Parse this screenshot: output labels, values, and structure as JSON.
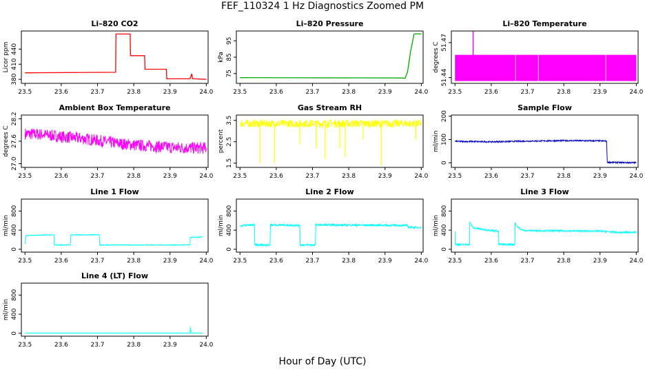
{
  "figure": {
    "title": "FEF_110324  1 Hz Diagnostics Zoomed PM",
    "xlabel": "Hour of Day (UTC)"
  },
  "chart_data": [
    {
      "type": "line",
      "title": "Li–820 CO2",
      "ylabel": "Licor ppm",
      "color": "#ff0000",
      "xlim": [
        23.49,
        24.005
      ],
      "ylim": [
        372,
        476
      ],
      "xticks": [
        23.5,
        23.6,
        23.7,
        23.8,
        23.9,
        24.0
      ],
      "xtick_labels": [
        "23.5",
        "23.6",
        "23.7",
        "23.8",
        "23.9",
        "24.0"
      ],
      "yticks": [
        380,
        410,
        440
      ],
      "ytick_labels": [
        "380",
        "410",
        "440"
      ],
      "series": [
        {
          "x": [
            23.5,
            23.75,
            23.751,
            23.79,
            23.791,
            23.83,
            23.831,
            23.89,
            23.891,
            23.955,
            23.96,
            23.962,
            23.965,
            24.0
          ],
          "y": [
            393,
            394,
            470,
            470,
            427,
            427,
            400,
            400,
            381,
            381,
            391,
            381,
            381,
            380
          ]
        }
      ]
    },
    {
      "type": "line",
      "title": "Li–820 Pressure",
      "ylabel": "kPa",
      "color": "#00aa00",
      "xlim": [
        23.49,
        24.005
      ],
      "ylim": [
        69,
        101
      ],
      "xticks": [
        23.5,
        23.6,
        23.7,
        23.8,
        23.9,
        24.0
      ],
      "xtick_labels": [
        "23.5",
        "23.6",
        "23.7",
        "23.8",
        "23.9",
        "24.0"
      ],
      "yticks": [
        75,
        85,
        95
      ],
      "ytick_labels": [
        "75",
        "85",
        "95"
      ],
      "series": [
        {
          "x": [
            23.5,
            23.95,
            23.955,
            23.962,
            23.97,
            23.98,
            23.985,
            24.0
          ],
          "y": [
            72.5,
            72.3,
            72,
            76,
            88,
            99,
            99.3,
            99.2
          ]
        }
      ]
    },
    {
      "type": "area",
      "title": "Li–820 Temperature",
      "ylabel": "degrees C",
      "color": "#ff00ff",
      "xlim": [
        23.49,
        24.005
      ],
      "ylim": [
        51.435,
        51.48
      ],
      "xticks": [
        23.5,
        23.6,
        23.7,
        23.8,
        23.9,
        24.0
      ],
      "xtick_labels": [
        "23.5",
        "23.6",
        "23.7",
        "23.8",
        "23.9",
        "24.0"
      ],
      "yticks": [
        51.44,
        51.47
      ],
      "ytick_labels": [
        "51.44",
        "51.47"
      ],
      "band": [
        51.437,
        51.4595
      ],
      "spike": {
        "x": 23.55,
        "y": 51.48
      }
    },
    {
      "type": "line",
      "title": "Ambient Box Temperature",
      "ylabel": "degrees C",
      "color": "#ff00ff",
      "xlim": [
        23.49,
        24.005
      ],
      "ylim": [
        26.9,
        28.3
      ],
      "xticks": [
        23.5,
        23.6,
        23.7,
        23.8,
        23.9,
        24.0
      ],
      "xtick_labels": [
        "23.5",
        "23.6",
        "23.7",
        "23.8",
        "23.9",
        "24.0"
      ],
      "yticks": [
        27.0,
        27.6,
        28.2
      ],
      "ytick_labels": [
        "27.0",
        "27.6",
        "28.2"
      ],
      "series": [
        {
          "x": [
            23.5,
            23.55,
            23.6,
            23.65,
            23.7,
            23.75,
            23.8,
            23.85,
            23.9,
            23.95,
            24.0
          ],
          "y": [
            27.8,
            27.78,
            27.72,
            27.68,
            27.62,
            27.55,
            27.5,
            27.47,
            27.44,
            27.42,
            27.42
          ],
          "noise": 0.16
        }
      ]
    },
    {
      "type": "line",
      "title": "Gas Stream RH",
      "ylabel": "percent",
      "color": "#ffff00",
      "xlim": [
        23.49,
        24.005
      ],
      "ylim": [
        1.3,
        3.75
      ],
      "xticks": [
        23.5,
        23.6,
        23.7,
        23.8,
        23.9,
        24.0
      ],
      "xtick_labels": [
        "23.5",
        "23.6",
        "23.7",
        "23.8",
        "23.9",
        "24.0"
      ],
      "yticks": [
        1.5,
        2.5,
        3.5
      ],
      "ytick_labels": [
        "1.5",
        "2.5",
        "3.5"
      ],
      "series": [
        {
          "x": [
            23.5,
            24.0
          ],
          "y": [
            3.35,
            3.35
          ],
          "noise": 0.18,
          "dips": [
            [
              23.555,
              1.5
            ],
            [
              23.595,
              1.5
            ],
            [
              23.665,
              2.4
            ],
            [
              23.71,
              2.2
            ],
            [
              23.735,
              1.7
            ],
            [
              23.775,
              2.2
            ],
            [
              23.79,
              1.8
            ],
            [
              23.84,
              2.6
            ],
            [
              23.89,
              1.4
            ],
            [
              23.985,
              2.6
            ]
          ]
        }
      ]
    },
    {
      "type": "line",
      "title": "Sample Flow",
      "ylabel": "ml/min",
      "color": "#0000cc",
      "xlim": [
        23.49,
        24.005
      ],
      "ylim": [
        -20,
        205
      ],
      "xticks": [
        23.5,
        23.6,
        23.7,
        23.8,
        23.9,
        24.0
      ],
      "xtick_labels": [
        "23.5",
        "23.6",
        "23.7",
        "23.8",
        "23.9",
        "24.0"
      ],
      "yticks": [
        0,
        100,
        200
      ],
      "ytick_labels": [
        "0",
        "100",
        "200"
      ],
      "series": [
        {
          "x": [
            23.5,
            23.6,
            23.7,
            23.8,
            23.9,
            23.918,
            23.92,
            24.0
          ],
          "y": [
            92,
            90,
            93,
            95,
            94,
            93,
            2,
            0
          ],
          "noise": 3
        }
      ]
    },
    {
      "type": "line",
      "title": "Line 1 Flow",
      "ylabel": "ml/min",
      "color": "#00ffff",
      "xlim": [
        23.49,
        24.005
      ],
      "ylim": [
        -60,
        1050
      ],
      "xticks": [
        23.5,
        23.6,
        23.7,
        23.8,
        23.9,
        24.0
      ],
      "xtick_labels": [
        "23.5",
        "23.6",
        "23.7",
        "23.8",
        "23.9",
        "24.0"
      ],
      "yticks": [
        0,
        400,
        800
      ],
      "ytick_labels": [
        "0",
        "400",
        "800"
      ],
      "series": [
        {
          "x": [
            23.5,
            23.503,
            23.58,
            23.581,
            23.625,
            23.626,
            23.705,
            23.706,
            23.955,
            23.956,
            23.99
          ],
          "y": [
            110,
            290,
            300,
            90,
            90,
            300,
            305,
            90,
            90,
            250,
            255
          ],
          "noise": 8
        }
      ]
    },
    {
      "type": "line",
      "title": "Line 2 Flow",
      "ylabel": "ml/min",
      "color": "#00ffff",
      "xlim": [
        23.49,
        24.005
      ],
      "ylim": [
        -60,
        1050
      ],
      "xticks": [
        23.5,
        23.6,
        23.7,
        23.8,
        23.9,
        24.0
      ],
      "xtick_labels": [
        "23.5",
        "23.6",
        "23.7",
        "23.8",
        "23.9",
        "24.0"
      ],
      "yticks": [
        0,
        400,
        800
      ],
      "ytick_labels": [
        "0",
        "400",
        "800"
      ],
      "series": [
        {
          "x": [
            23.5,
            23.54,
            23.541,
            23.583,
            23.584,
            23.665,
            23.666,
            23.708,
            23.709,
            23.96,
            23.965,
            24.0
          ],
          "y": [
            490,
            510,
            90,
            90,
            510,
            500,
            90,
            90,
            510,
            500,
            460,
            455
          ],
          "noise": 20
        }
      ]
    },
    {
      "type": "line",
      "title": "Line 3 Flow",
      "ylabel": "ml/min",
      "color": "#00ffff",
      "xlim": [
        23.49,
        24.005
      ],
      "ylim": [
        -60,
        1050
      ],
      "xticks": [
        23.5,
        23.6,
        23.7,
        23.8,
        23.9,
        24.0
      ],
      "xtick_labels": [
        "23.5",
        "23.6",
        "23.7",
        "23.8",
        "23.9",
        "24.0"
      ],
      "yticks": [
        0,
        400,
        800
      ],
      "ytick_labels": [
        "0",
        "400",
        "800"
      ],
      "series": [
        {
          "x": [
            23.5,
            23.501,
            23.54,
            23.541,
            23.55,
            23.58,
            23.62,
            23.621,
            23.665,
            23.666,
            23.67,
            23.68,
            23.69,
            23.7,
            23.8,
            23.9,
            23.95,
            24.0
          ],
          "y": [
            380,
            100,
            100,
            560,
            450,
            410,
            380,
            100,
            100,
            560,
            500,
            420,
            395,
            390,
            385,
            380,
            350,
            360
          ],
          "noise": 18
        }
      ]
    },
    {
      "type": "line",
      "title": "Line 4 (LT) Flow",
      "ylabel": "ml/min",
      "color": "#00ffff",
      "xlim": [
        23.49,
        24.005
      ],
      "ylim": [
        -60,
        1050
      ],
      "xticks": [
        23.5,
        23.6,
        23.7,
        23.8,
        23.9,
        24.0
      ],
      "xtick_labels": [
        "23.5",
        "23.6",
        "23.7",
        "23.8",
        "23.9",
        "24.0"
      ],
      "yticks": [
        0,
        400,
        800
      ],
      "ytick_labels": [
        "0",
        "400",
        "800"
      ],
      "series": [
        {
          "x": [
            23.5,
            23.955,
            23.956,
            23.958,
            23.96,
            23.99
          ],
          "y": [
            5,
            5,
            130,
            20,
            8,
            5
          ],
          "noise": 3
        }
      ]
    }
  ]
}
